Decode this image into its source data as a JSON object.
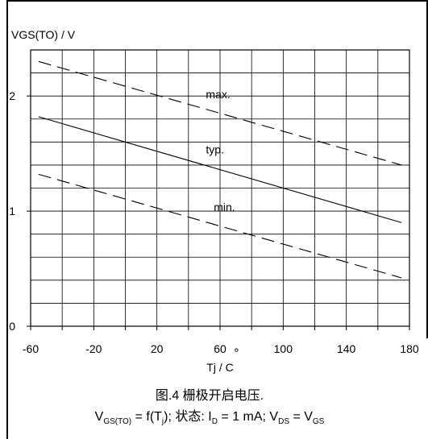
{
  "chart_data": {
    "type": "line",
    "ylabel": "VGS(TO) / V",
    "xlabel": "Tj /   C",
    "xlim": [
      -60,
      180
    ],
    "ylim": [
      0,
      2.4
    ],
    "xticks": [
      -60,
      -20,
      20,
      60,
      100,
      140,
      180
    ],
    "xtick_labels": [
      "-60",
      "-20",
      "20",
      "60",
      "100",
      "140",
      "180"
    ],
    "yticks": [
      0,
      1,
      2
    ],
    "ytick_labels": [
      "0",
      "1",
      "2"
    ],
    "x_minor_step": 20,
    "y_minor_step": 0.2,
    "grid": true,
    "series": [
      {
        "name": "max.",
        "style": "dashed",
        "x": [
          -55,
          175
        ],
        "y": [
          2.3,
          1.4
        ]
      },
      {
        "name": "typ.",
        "style": "solid",
        "x": [
          -55,
          175
        ],
        "y": [
          1.82,
          0.9
        ]
      },
      {
        "name": "min.",
        "style": "dashed",
        "x": [
          -55,
          175
        ],
        "y": [
          1.32,
          0.42
        ]
      }
    ],
    "labels": [
      {
        "series": "max.",
        "text": "max.",
        "x": 50,
        "y": 1.98
      },
      {
        "series": "typ.",
        "text": "typ.",
        "x": 50,
        "y": 1.5
      },
      {
        "series": "min.",
        "text": "min.",
        "x": 55,
        "y": 1.0
      }
    ]
  },
  "caption": {
    "line1": "图.4 栅极开启电压.",
    "line2_parts": {
      "v": "V",
      "v_sub": "GS(TO)",
      "eq": " = f(T",
      "tj_sub": "j",
      "state": "); 状态: I",
      "id_sub": "D",
      "id_val": " = 1 mA; V",
      "vds_sub": "DS",
      "eq2": " = V",
      "vgs_sub": "GS"
    }
  }
}
